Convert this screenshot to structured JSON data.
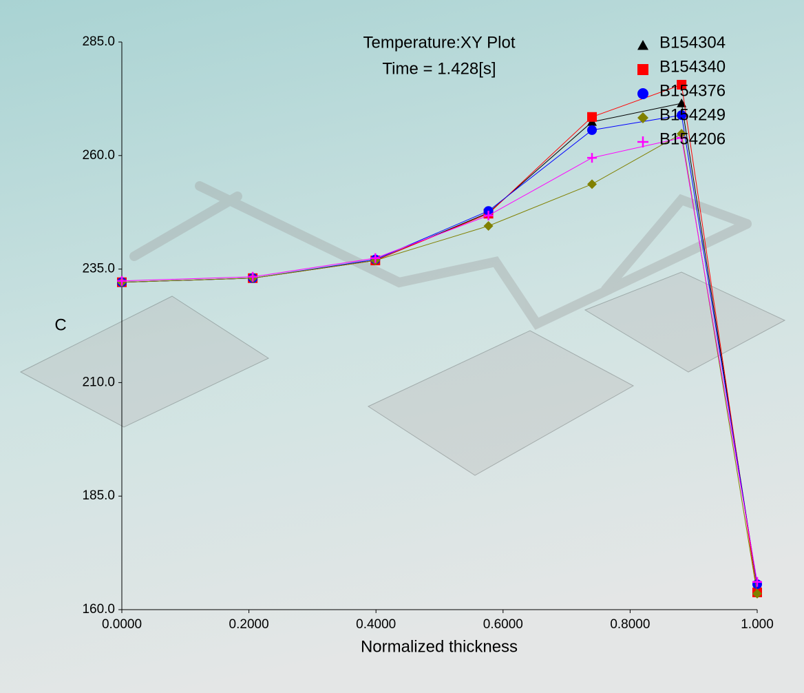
{
  "chart_data": {
    "type": "line",
    "title": "Temperature:XY Plot",
    "subtitle": "Time = 1.428[s]",
    "x_label": "Normalized thickness",
    "y_label": "C",
    "x": [
      0.0,
      0.206,
      0.399,
      0.577,
      0.74,
      0.881,
      1.0
    ],
    "series": [
      {
        "name": "B154304",
        "color": "#000000",
        "marker": "triangle",
        "values": [
          232.1,
          233.0,
          236.9,
          247.4,
          267.4,
          271.5,
          165.3
        ]
      },
      {
        "name": "B154340",
        "color": "#ff0000",
        "marker": "square",
        "values": [
          232.1,
          233.0,
          236.9,
          247.2,
          268.5,
          275.6,
          163.8
        ]
      },
      {
        "name": "B154376",
        "color": "#0000ff",
        "marker": "circle",
        "values": [
          232.1,
          233.0,
          237.1,
          247.8,
          265.6,
          268.9,
          165.6
        ]
      },
      {
        "name": "B154249",
        "color": "#808000",
        "marker": "diamond",
        "values": [
          232.1,
          233.0,
          236.9,
          244.5,
          253.7,
          264.8,
          163.5
        ]
      },
      {
        "name": "B154206",
        "color": "#ff00ff",
        "marker": "plus",
        "values": [
          232.4,
          233.3,
          237.4,
          246.8,
          259.5,
          263.9,
          166.1
        ]
      }
    ],
    "xlim": [
      0,
      1
    ],
    "ylim": [
      160,
      285
    ],
    "xticks": [
      {
        "value": 0,
        "label": "0.0000"
      },
      {
        "value": 0.2,
        "label": "0.2000"
      },
      {
        "value": 0.4,
        "label": "0.4000"
      },
      {
        "value": 0.6,
        "label": "0.6000"
      },
      {
        "value": 0.8,
        "label": "0.8000"
      },
      {
        "value": 1,
        "label": "1.000"
      }
    ],
    "yticks": [
      {
        "value": 160,
        "label": "160.0"
      },
      {
        "value": 185,
        "label": "185.0"
      },
      {
        "value": 210,
        "label": "210.0"
      },
      {
        "value": 235,
        "label": "235.0"
      },
      {
        "value": 260,
        "label": "260.0"
      },
      {
        "value": 285,
        "label": "285.0"
      }
    ],
    "legend": "top-right"
  }
}
